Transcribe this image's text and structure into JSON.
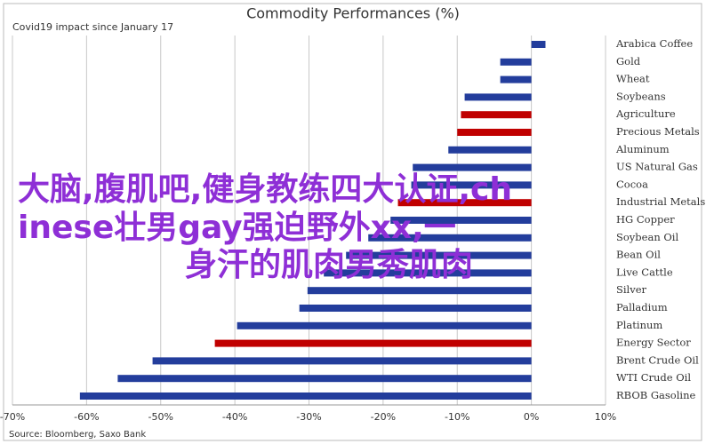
{
  "chart_data": {
    "type": "hbar",
    "title": "Commodity Performances (%)",
    "subtitle": "Covid19 impact since January 17",
    "source": "Source: Bloomberg, Saxo Bank",
    "categories": [
      "Arabica Coffee",
      "Gold",
      "Wheat",
      "Soybeans",
      "Agriculture",
      "Precious Metals",
      "Aluminum",
      "US Natural Gas",
      "Cocoa",
      "Industrial Metals",
      "HG Copper",
      "Soybean Oil",
      "Bean Oil",
      "Live Cattle",
      "Silver",
      "Palladium",
      "Platinum",
      "Energy Sector",
      "Brent Crude Oil",
      "WTI Crude Oil",
      "RBOB Gasoline"
    ],
    "values": [
      1.9,
      -4.2,
      -4.2,
      -9.0,
      -9.5,
      -10.0,
      -11.2,
      -16.0,
      -16.2,
      -18.0,
      -19.0,
      -22.0,
      -25.0,
      -28.0,
      -30.2,
      -31.3,
      -39.7,
      -42.7,
      -51.1,
      -55.8,
      -60.9
    ],
    "colors": [
      "#233d9c",
      "#233d9c",
      "#233d9c",
      "#233d9c",
      "#c00000",
      "#c00000",
      "#233d9c",
      "#233d9c",
      "#233d9c",
      "#c00000",
      "#233d9c",
      "#233d9c",
      "#233d9c",
      "#233d9c",
      "#233d9c",
      "#233d9c",
      "#233d9c",
      "#c00000",
      "#233d9c",
      "#233d9c",
      "#233d9c"
    ],
    "xlim": [
      -70,
      10
    ],
    "xticks": [
      {
        "value": -70,
        "label": "-70%"
      },
      {
        "value": -60,
        "label": "-60%"
      },
      {
        "value": -50,
        "label": "-50%"
      },
      {
        "value": -40,
        "label": "-40%"
      },
      {
        "value": -30,
        "label": "-30%"
      },
      {
        "value": -20,
        "label": "-20%"
      },
      {
        "value": -10,
        "label": "-10%"
      },
      {
        "value": 0,
        "label": "0%"
      },
      {
        "value": 10,
        "label": "10%"
      }
    ],
    "grid": true,
    "overlay_text": [
      "大脑,腹肌吧,健身教练四大认证,ch",
      "inese壮男gay强迫野外xx,一",
      "身汗的肌肉男秀肌肉"
    ]
  }
}
